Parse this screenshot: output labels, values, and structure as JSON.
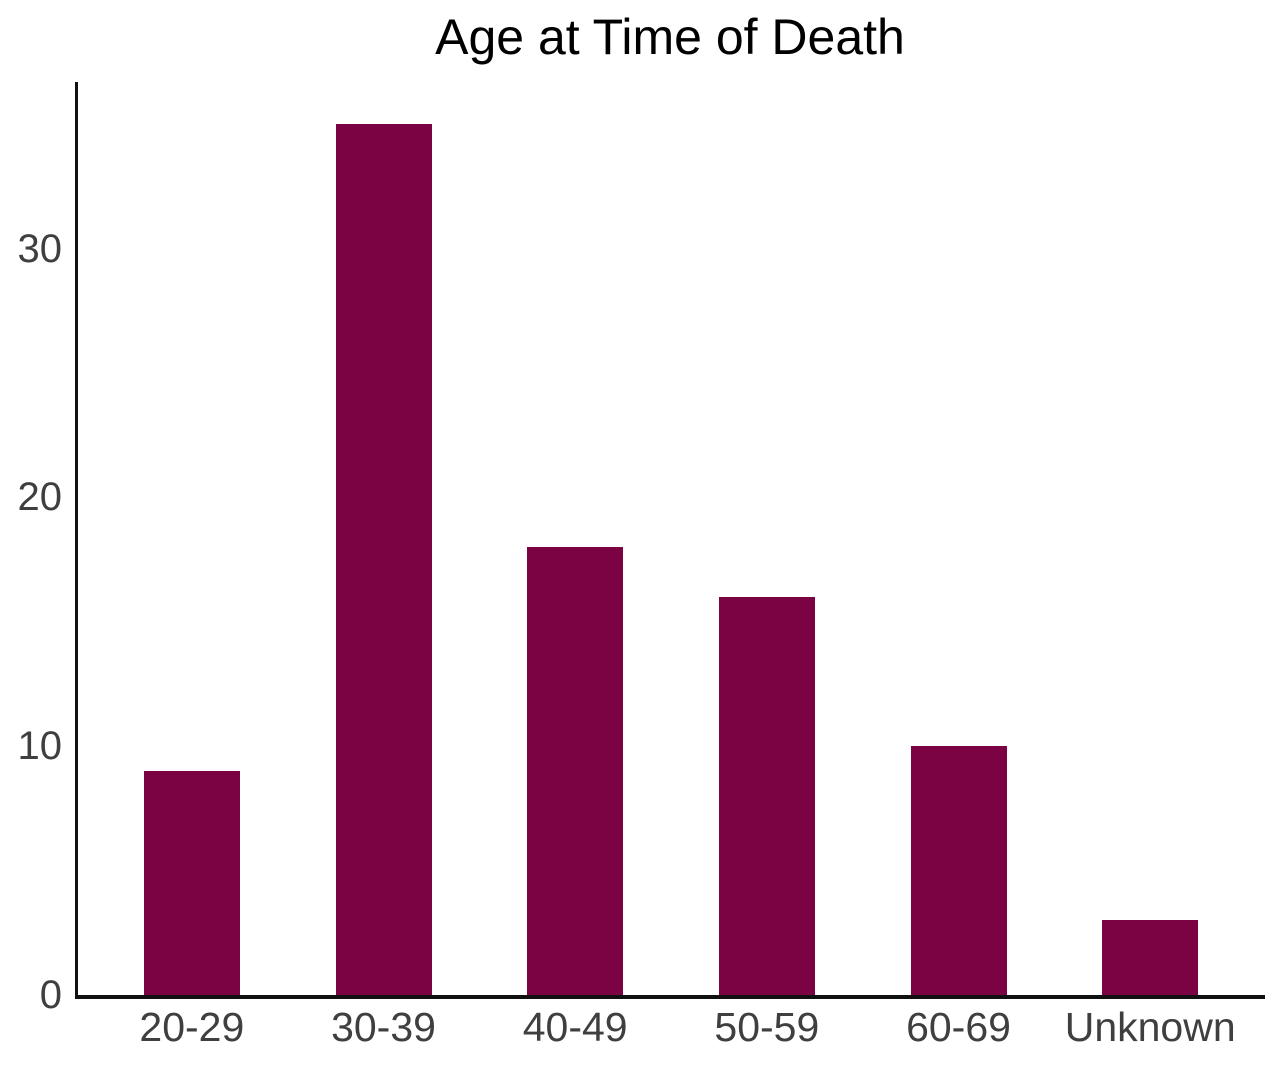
{
  "chart_data": {
    "type": "bar",
    "title": "Age at Time of Death",
    "categories": [
      "20-29",
      "30-39",
      "40-49",
      "50-59",
      "60-69",
      "Unknown"
    ],
    "values": [
      9,
      35,
      18,
      16,
      10,
      3
    ],
    "yticks": [
      0,
      10,
      20,
      30
    ],
    "ylim": [
      0,
      36.7
    ],
    "xlabel": "",
    "ylabel": "",
    "grid": false,
    "legend": "none",
    "colors": {
      "bar": "#7C0343",
      "axis": "#111111",
      "tick_label": "#3f3f3f",
      "title": "#000000",
      "background": "#ffffff"
    }
  }
}
